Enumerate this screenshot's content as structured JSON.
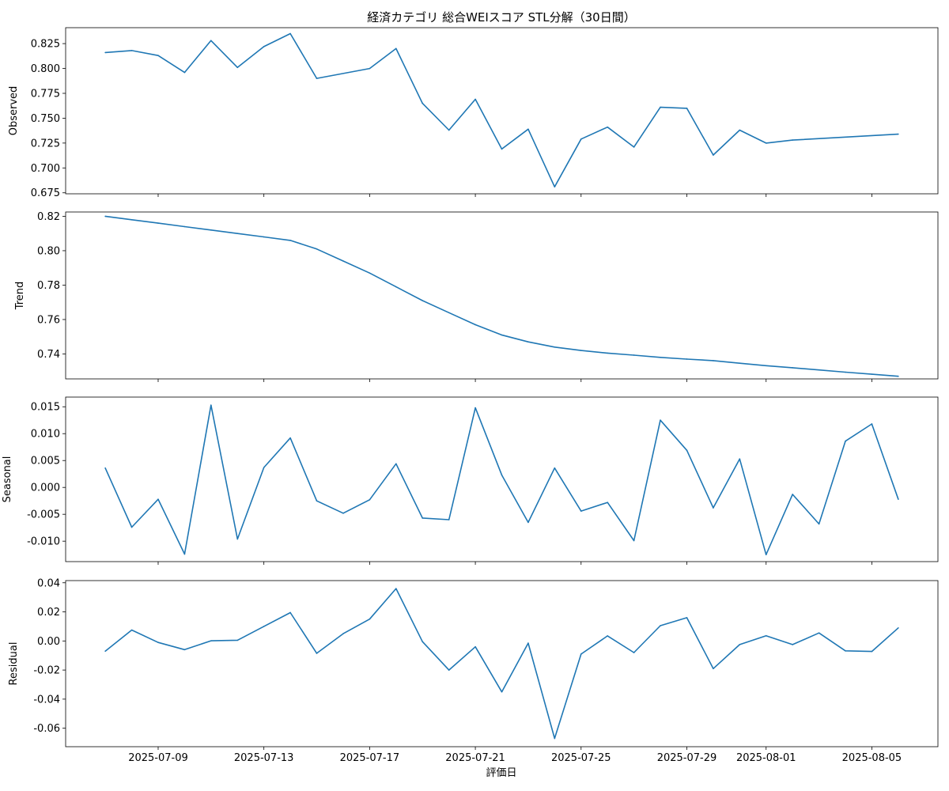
{
  "figure": {
    "title": "経済カテゴリ 総合WEIスコア STL分解（30日間）",
    "xlabel": "評価日"
  },
  "x_ticks": [
    "2025-07-09",
    "2025-07-13",
    "2025-07-17",
    "2025-07-21",
    "2025-07-25",
    "2025-07-29",
    "2025-08-01",
    "2025-08-05"
  ],
  "chart_data": [
    {
      "type": "line",
      "ylabel": "Observed",
      "ylim": [
        0.674,
        0.841
      ],
      "y_ticks": [
        0.675,
        0.7,
        0.725,
        0.75,
        0.775,
        0.8,
        0.825
      ],
      "x": [
        "2025-07-07",
        "2025-07-08",
        "2025-07-09",
        "2025-07-10",
        "2025-07-11",
        "2025-07-12",
        "2025-07-13",
        "2025-07-14",
        "2025-07-15",
        "2025-07-17",
        "2025-07-18",
        "2025-07-19",
        "2025-07-20",
        "2025-07-21",
        "2025-07-22",
        "2025-07-23",
        "2025-07-24",
        "2025-07-25",
        "2025-07-26",
        "2025-07-27",
        "2025-07-28",
        "2025-07-29",
        "2025-07-30",
        "2025-07-31",
        "2025-08-01",
        "2025-08-02",
        "2025-08-06"
      ],
      "values": [
        0.816,
        0.818,
        0.813,
        0.796,
        0.828,
        0.801,
        0.822,
        0.835,
        0.79,
        0.8,
        0.82,
        0.765,
        0.738,
        0.769,
        0.719,
        0.739,
        0.681,
        0.729,
        0.741,
        0.721,
        0.761,
        0.76,
        0.713,
        0.738,
        0.725,
        0.728,
        0.734
      ]
    },
    {
      "type": "line",
      "ylabel": "Trend",
      "ylim": [
        0.7255,
        0.8225
      ],
      "y_ticks": [
        0.74,
        0.76,
        0.78,
        0.8,
        0.82
      ],
      "x": [
        "2025-07-07",
        "2025-07-08",
        "2025-07-09",
        "2025-07-10",
        "2025-07-11",
        "2025-07-12",
        "2025-07-13",
        "2025-07-14",
        "2025-07-15",
        "2025-07-16",
        "2025-07-17",
        "2025-07-18",
        "2025-07-19",
        "2025-07-20",
        "2025-07-21",
        "2025-07-22",
        "2025-07-23",
        "2025-07-24",
        "2025-07-25",
        "2025-07-26",
        "2025-07-27",
        "2025-07-28",
        "2025-07-29",
        "2025-07-30",
        "2025-07-31",
        "2025-08-01",
        "2025-08-02",
        "2025-08-03",
        "2025-08-04",
        "2025-08-05",
        "2025-08-06"
      ],
      "values": [
        0.82,
        0.818,
        0.816,
        0.814,
        0.812,
        0.81,
        0.808,
        0.806,
        0.801,
        0.794,
        0.787,
        0.779,
        0.771,
        0.764,
        0.757,
        0.751,
        0.747,
        0.744,
        0.742,
        0.7405,
        0.7393,
        0.738,
        0.737,
        0.7361,
        0.7346,
        0.7332,
        0.732,
        0.7307,
        0.7294,
        0.7282,
        0.727
      ]
    },
    {
      "type": "line",
      "ylabel": "Seasonal",
      "ylim": [
        -0.0138,
        0.0168
      ],
      "y_ticks": [
        -0.01,
        -0.005,
        0.0,
        0.005,
        0.01,
        0.015
      ],
      "x": [
        "2025-07-07",
        "2025-07-08",
        "2025-07-09",
        "2025-07-10",
        "2025-07-11",
        "2025-07-12",
        "2025-07-13",
        "2025-07-14",
        "2025-07-15",
        "2025-07-16",
        "2025-07-17",
        "2025-07-18",
        "2025-07-19",
        "2025-07-20",
        "2025-07-21",
        "2025-07-22",
        "2025-07-23",
        "2025-07-24",
        "2025-07-25",
        "2025-07-26",
        "2025-07-27",
        "2025-07-28",
        "2025-07-29",
        "2025-07-30",
        "2025-07-31",
        "2025-08-01",
        "2025-08-02",
        "2025-08-03",
        "2025-08-04",
        "2025-08-05",
        "2025-08-06"
      ],
      "values": [
        0.0036,
        -0.0074,
        -0.0022,
        -0.0124,
        0.0153,
        -0.0096,
        0.0037,
        0.0092,
        -0.0025,
        -0.0048,
        -0.0023,
        0.0044,
        -0.0057,
        -0.006,
        0.0148,
        0.0023,
        -0.0065,
        0.0036,
        -0.0044,
        -0.0028,
        -0.0099,
        0.0125,
        0.0069,
        -0.0038,
        0.0053,
        -0.0125,
        -0.0013,
        -0.0068,
        0.0086,
        0.0118,
        -0.0022
      ]
    },
    {
      "type": "line",
      "ylabel": "Residual",
      "ylim": [
        -0.0727,
        0.0415
      ],
      "y_ticks": [
        -0.06,
        -0.04,
        -0.02,
        0.0,
        0.02,
        0.04
      ],
      "x": [
        "2025-07-07",
        "2025-07-08",
        "2025-07-09",
        "2025-07-10",
        "2025-07-11",
        "2025-07-12",
        "2025-07-13",
        "2025-07-14",
        "2025-07-15",
        "2025-07-16",
        "2025-07-17",
        "2025-07-18",
        "2025-07-19",
        "2025-07-20",
        "2025-07-21",
        "2025-07-22",
        "2025-07-23",
        "2025-07-24",
        "2025-07-25",
        "2025-07-26",
        "2025-07-27",
        "2025-07-28",
        "2025-07-29",
        "2025-07-30",
        "2025-07-31",
        "2025-08-01",
        "2025-08-02",
        "2025-08-03",
        "2025-08-04",
        "2025-08-05",
        "2025-08-06"
      ],
      "values": [
        -0.007,
        0.0075,
        -0.001,
        -0.006,
        0.0001,
        0.0005,
        0.01,
        0.0195,
        -0.0085,
        0.005,
        0.015,
        0.036,
        -0.0005,
        -0.02,
        -0.004,
        -0.035,
        -0.0015,
        -0.067,
        -0.009,
        0.0035,
        -0.008,
        0.0105,
        0.016,
        -0.019,
        -0.0025,
        0.0036,
        -0.0025,
        0.0055,
        -0.0068,
        -0.0072,
        0.009
      ]
    }
  ],
  "style": {
    "line_color": "#1f77b4"
  }
}
